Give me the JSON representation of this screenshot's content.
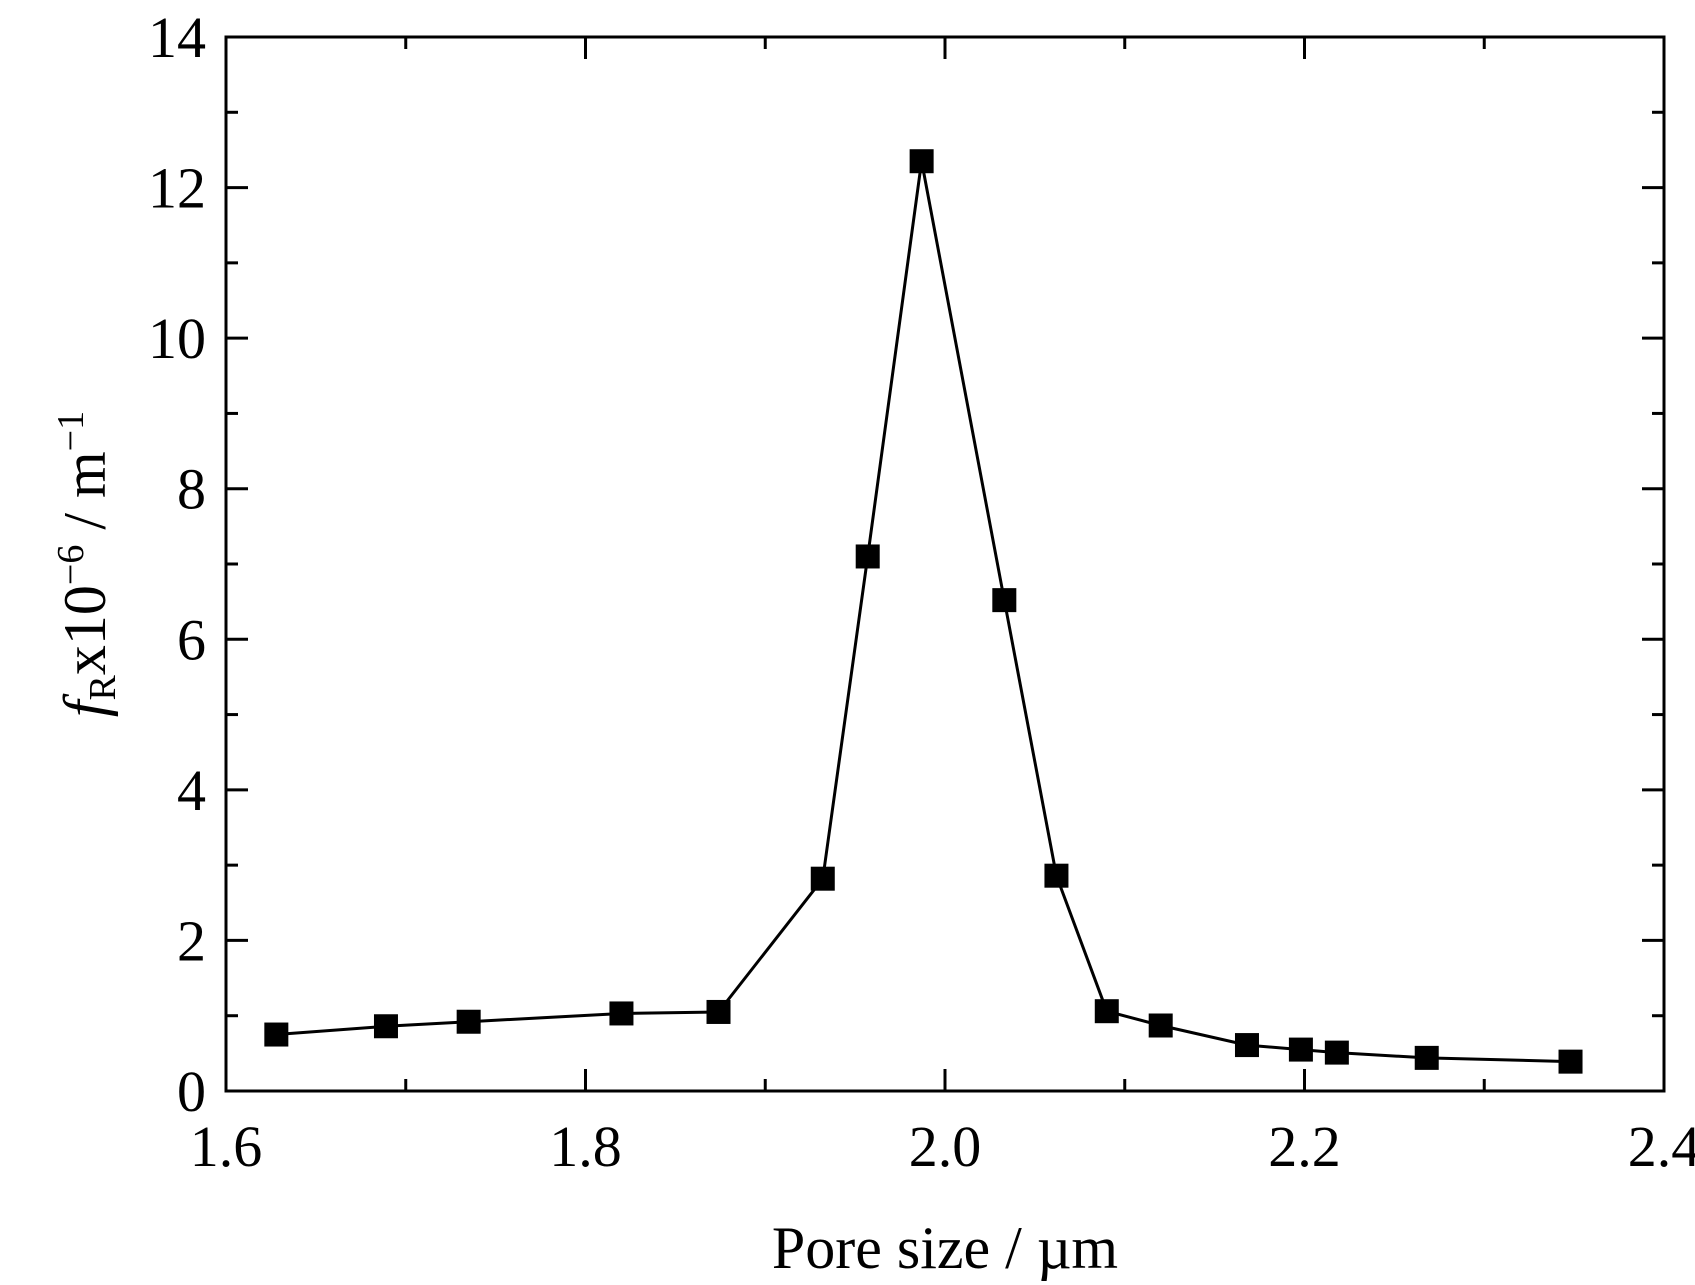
{
  "chart_data": {
    "type": "line",
    "x_axis": {
      "label": "Pore size / µm",
      "min": 1.6,
      "max": 2.4,
      "major_ticks": [
        1.6,
        1.8,
        2.0,
        2.2,
        2.4
      ],
      "tick_labels": [
        "1.6",
        "1.8",
        "2.0",
        "2.2",
        "2.4"
      ],
      "minor_step": 0.1
    },
    "y_axis": {
      "label_parts": {
        "symbol": "f",
        "subscript": "R",
        "multiplier": "x10",
        "exponent": "−6",
        "unit_sep": " / m",
        "unit_exponent": "−1"
      },
      "min": 0,
      "max": 14,
      "major_ticks": [
        0,
        2,
        4,
        6,
        8,
        10,
        12,
        14
      ],
      "tick_labels": [
        "0",
        "2",
        "4",
        "6",
        "8",
        "10",
        "12",
        "14"
      ],
      "minor_step": 1
    },
    "series": [
      {
        "marker": "square",
        "color": "#000000",
        "points": [
          {
            "x": 1.628,
            "y": 0.75
          },
          {
            "x": 1.689,
            "y": 0.86
          },
          {
            "x": 1.735,
            "y": 0.92
          },
          {
            "x": 1.82,
            "y": 1.03
          },
          {
            "x": 1.874,
            "y": 1.05
          },
          {
            "x": 1.932,
            "y": 2.82
          },
          {
            "x": 1.957,
            "y": 7.1
          },
          {
            "x": 1.987,
            "y": 12.35
          },
          {
            "x": 2.033,
            "y": 6.52
          },
          {
            "x": 2.062,
            "y": 2.86
          },
          {
            "x": 2.09,
            "y": 1.06
          },
          {
            "x": 2.12,
            "y": 0.87
          },
          {
            "x": 2.168,
            "y": 0.61
          },
          {
            "x": 2.198,
            "y": 0.55
          },
          {
            "x": 2.218,
            "y": 0.51
          },
          {
            "x": 2.268,
            "y": 0.44
          },
          {
            "x": 2.348,
            "y": 0.39
          }
        ]
      }
    ],
    "grid": false,
    "legend": "none"
  }
}
